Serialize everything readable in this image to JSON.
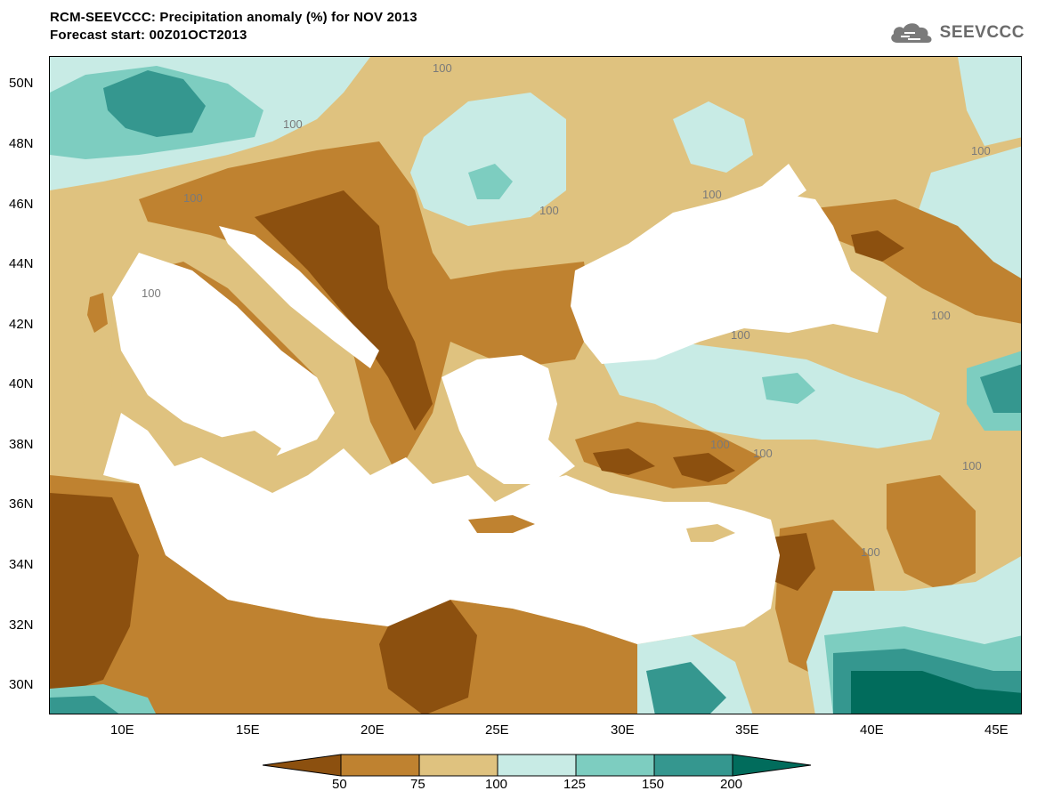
{
  "title": {
    "line1": "RCM-SEEVCCC: Precipitation anomaly (%) for NOV 2013",
    "line2": "Forecast start: 00Z01OCT2013"
  },
  "logo": {
    "text": "SEEVCCC",
    "icon": "cloud-icon"
  },
  "map": {
    "lat_range": [
      29,
      51
    ],
    "lon_range": [
      7,
      46
    ],
    "lat_ticks": [
      "50N",
      "48N",
      "46N",
      "44N",
      "42N",
      "40N",
      "38N",
      "36N",
      "34N",
      "32N",
      "30N"
    ],
    "lon_ticks": [
      "10E",
      "15E",
      "20E",
      "25E",
      "30E",
      "35E",
      "40E",
      "45E"
    ],
    "contour_labels": [
      "100",
      "100",
      "100",
      "100",
      "100",
      "100",
      "100",
      "100",
      "100",
      "100",
      "100",
      "100",
      "100"
    ]
  },
  "legend": {
    "levels": [
      "50",
      "75",
      "100",
      "125",
      "150",
      "200"
    ],
    "colors": [
      "#8c500f",
      "#bf8230",
      "#dfc27f",
      "#c8ebe5",
      "#7dcdc0",
      "#35978f",
      "#016c5c"
    ]
  }
}
